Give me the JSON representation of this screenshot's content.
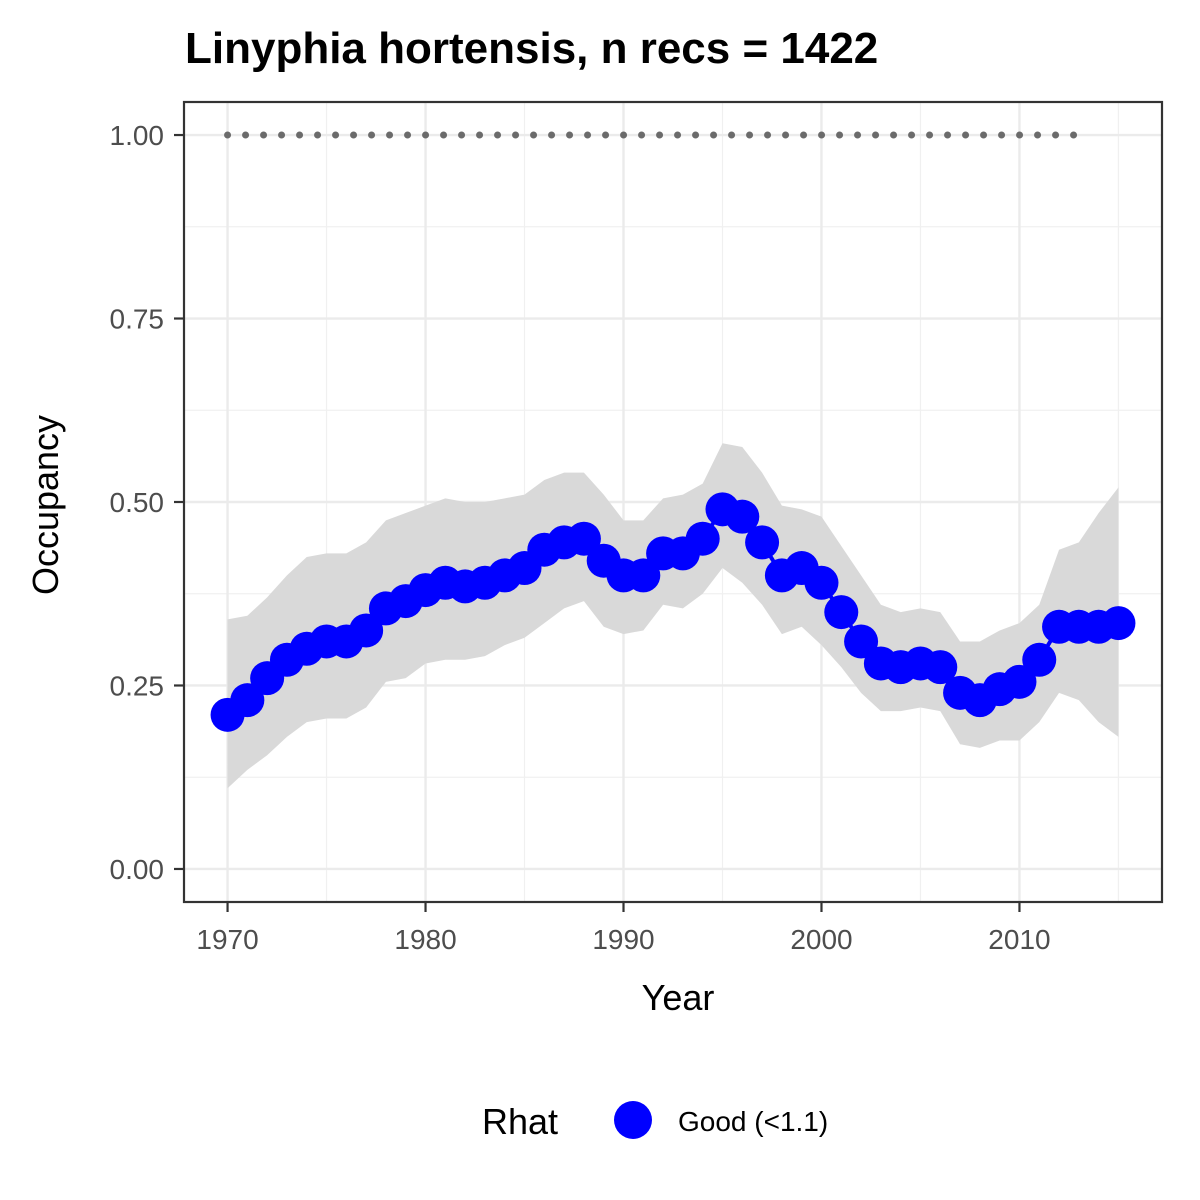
{
  "chart_data": {
    "type": "line",
    "title": "Linyphia hortensis, n recs = 1422",
    "xlabel": "Year",
    "ylabel": "Occupancy",
    "xlim": [
      1967.8,
      2017.2
    ],
    "ylim": [
      -0.045,
      1.045
    ],
    "x_ticks": [
      1970,
      1980,
      1990,
      2000,
      2010
    ],
    "x_tick_labels": [
      "1970",
      "1980",
      "1990",
      "2000",
      "2010"
    ],
    "y_ticks": [
      0,
      0.25,
      0.5,
      0.75,
      1.0
    ],
    "y_tick_labels": [
      "0.00",
      "0.25",
      "0.50",
      "0.75",
      "1.00"
    ],
    "grid": true,
    "x": [
      1970,
      1971,
      1972,
      1973,
      1974,
      1975,
      1976,
      1977,
      1978,
      1979,
      1980,
      1981,
      1982,
      1983,
      1984,
      1985,
      1986,
      1987,
      1988,
      1989,
      1990,
      1991,
      1992,
      1993,
      1994,
      1995,
      1996,
      1997,
      1998,
      1999,
      2000,
      2001,
      2002,
      2003,
      2004,
      2005,
      2006,
      2007,
      2008,
      2009,
      2010,
      2011,
      2012,
      2013,
      2014,
      2015
    ],
    "series": [
      {
        "values": [
          0.21,
          0.23,
          0.26,
          0.285,
          0.3,
          0.31,
          0.31,
          0.325,
          0.355,
          0.365,
          0.38,
          0.39,
          0.385,
          0.39,
          0.4,
          0.41,
          0.435,
          0.445,
          0.45,
          0.42,
          0.4,
          0.4,
          0.43,
          0.43,
          0.45,
          0.49,
          0.48,
          0.445,
          0.4,
          0.41,
          0.39,
          0.35,
          0.31,
          0.28,
          0.275,
          0.28,
          0.275,
          0.24,
          0.23,
          0.245,
          0.255,
          0.285,
          0.33,
          0.33,
          0.33,
          0.335
        ],
        "lower": [
          0.11,
          0.135,
          0.155,
          0.18,
          0.2,
          0.205,
          0.205,
          0.22,
          0.255,
          0.26,
          0.28,
          0.285,
          0.285,
          0.29,
          0.305,
          0.315,
          0.335,
          0.355,
          0.365,
          0.33,
          0.32,
          0.325,
          0.36,
          0.355,
          0.375,
          0.41,
          0.39,
          0.36,
          0.32,
          0.33,
          0.305,
          0.275,
          0.24,
          0.215,
          0.215,
          0.22,
          0.215,
          0.17,
          0.165,
          0.175,
          0.175,
          0.2,
          0.24,
          0.23,
          0.2,
          0.18
        ],
        "upper": [
          0.34,
          0.345,
          0.37,
          0.4,
          0.425,
          0.43,
          0.43,
          0.445,
          0.475,
          0.485,
          0.495,
          0.505,
          0.5,
          0.5,
          0.505,
          0.51,
          0.53,
          0.54,
          0.54,
          0.51,
          0.475,
          0.475,
          0.505,
          0.51,
          0.525,
          0.58,
          0.575,
          0.54,
          0.495,
          0.49,
          0.48,
          0.44,
          0.4,
          0.36,
          0.35,
          0.355,
          0.35,
          0.31,
          0.31,
          0.325,
          0.335,
          0.36,
          0.435,
          0.445,
          0.485,
          0.52
        ],
        "color": "#0000ff",
        "band_color": "#d9d9d9"
      }
    ],
    "reference_line": {
      "y": 1.0,
      "x_start": 1970,
      "x_end": 2013,
      "style": "dotted",
      "color": "#6b6b6b"
    },
    "legend": {
      "title": "Rhat",
      "items": [
        "Good (<1.1)"
      ],
      "placement": "bottom"
    }
  }
}
